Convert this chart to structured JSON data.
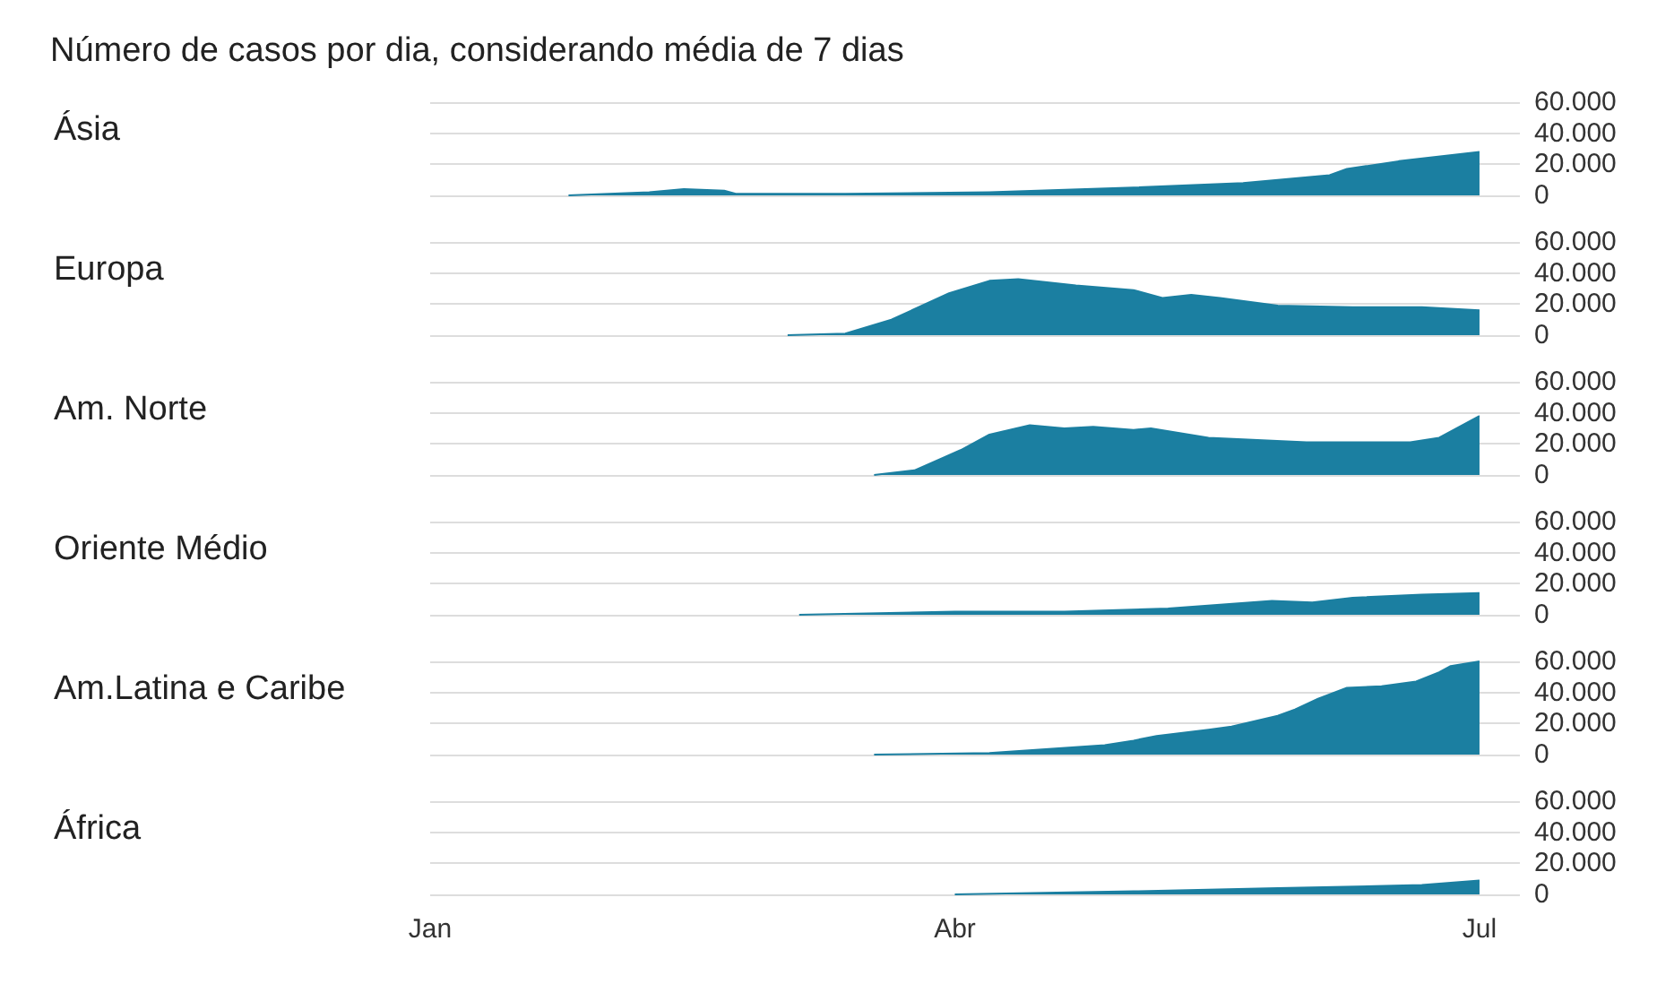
{
  "chart_data": [
    {
      "type": "area",
      "title": "Número de casos por dia, considerando média de 7 dias",
      "ylabel": "Ásia",
      "tick_labels": "y",
      "grid": "y",
      "x": [
        "--01-25",
        "--02-08",
        "--02-14",
        "--02-21",
        "--02-23",
        "--03-13",
        "--04-07",
        "--05-02",
        "--05-21",
        "--06-05",
        "--06-08",
        "--06-17",
        "--07-01"
      ],
      "series": [
        {
          "color": "#1b7fa1",
          "values": [
            0,
            2000,
            4000,
            3000,
            1000,
            1000,
            2000,
            5000,
            8000,
            13000,
            17000,
            22000,
            28000
          ]
        }
      ],
      "xlim": [
        "--01-01",
        "--07-08"
      ],
      "ylim": [
        0,
        60000
      ],
      "yticks": [
        {
          "value": 0,
          "label": "0"
        },
        {
          "value": 20000,
          "label": "20.000"
        },
        {
          "value": 40000,
          "label": "40.000"
        },
        {
          "value": 60000,
          "label": "60.000"
        }
      ]
    },
    {
      "type": "area",
      "ylabel": "Europa",
      "tick_labels": "y",
      "grid": "y",
      "x": [
        "--03-03",
        "--03-13",
        "--03-21",
        "--03-31",
        "--04-07",
        "--04-12",
        "--04-22",
        "--05-02",
        "--05-07",
        "--05-12",
        "--05-17",
        "--05-27",
        "--06-09",
        "--06-21",
        "--07-01"
      ],
      "series": [
        {
          "color": "#1b7fa1",
          "values": [
            0,
            1000,
            10000,
            27000,
            35000,
            36000,
            32000,
            29000,
            24000,
            26000,
            24000,
            19000,
            18000,
            18000,
            16000
          ]
        }
      ],
      "xlim": [
        "--01-01",
        "--07-08"
      ],
      "ylim": [
        0,
        60000
      ],
      "yticks": [
        {
          "value": 0,
          "label": "0"
        },
        {
          "value": 20000,
          "label": "20.000"
        },
        {
          "value": 40000,
          "label": "40.000"
        },
        {
          "value": 60000,
          "label": "60.000"
        }
      ]
    },
    {
      "type": "area",
      "ylabel": "Am. Norte",
      "tick_labels": "y",
      "grid": "y",
      "x": [
        "--03-18",
        "--03-25",
        "--04-02",
        "--04-07",
        "--04-14",
        "--04-20",
        "--04-25",
        "--05-02",
        "--05-05",
        "--05-15",
        "--06-01",
        "--06-19",
        "--06-24",
        "--07-01"
      ],
      "series": [
        {
          "color": "#1b7fa1",
          "values": [
            0,
            3000,
            16000,
            26000,
            32000,
            30000,
            31000,
            29000,
            30000,
            24000,
            21000,
            21000,
            24000,
            38000
          ]
        }
      ],
      "xlim": [
        "--01-01",
        "--07-08"
      ],
      "ylim": [
        0,
        60000
      ],
      "yticks": [
        {
          "value": 0,
          "label": "0"
        },
        {
          "value": 20000,
          "label": "20.000"
        },
        {
          "value": 40000,
          "label": "40.000"
        },
        {
          "value": 60000,
          "label": "60.000"
        }
      ]
    },
    {
      "type": "area",
      "ylabel": "Oriente Médio",
      "tick_labels": "y",
      "grid": "y",
      "x": [
        "--03-05",
        "--04-01",
        "--04-07",
        "--04-20",
        "--05-08",
        "--05-26",
        "--06-02",
        "--06-09",
        "--06-21",
        "--07-01"
      ],
      "series": [
        {
          "color": "#1b7fa1",
          "values": [
            0,
            2000,
            2000,
            2000,
            4000,
            9000,
            8000,
            11000,
            13000,
            14000
          ]
        }
      ],
      "xlim": [
        "--01-01",
        "--07-08"
      ],
      "ylim": [
        0,
        60000
      ],
      "yticks": [
        {
          "value": 0,
          "label": "0"
        },
        {
          "value": 20000,
          "label": "20.000"
        },
        {
          "value": 40000,
          "label": "40.000"
        },
        {
          "value": 60000,
          "label": "60.000"
        }
      ]
    },
    {
      "type": "area",
      "ylabel": "Am.Latina e Caribe",
      "tick_labels": "y",
      "grid": "y",
      "x": [
        "--03-18",
        "--04-07",
        "--04-27",
        "--05-02",
        "--05-06",
        "--05-15",
        "--05-19",
        "--05-27",
        "--05-30",
        "--06-03",
        "--06-08",
        "--06-14",
        "--06-20",
        "--06-24",
        "--06-26",
        "--07-01"
      ],
      "series": [
        {
          "color": "#1b7fa1",
          "values": [
            0,
            1000,
            6000,
            9000,
            12000,
            16000,
            18000,
            25000,
            29000,
            36000,
            43000,
            44000,
            47000,
            53000,
            57000,
            60000
          ]
        }
      ],
      "xlim": [
        "--01-01",
        "--07-08"
      ],
      "ylim": [
        0,
        60000
      ],
      "yticks": [
        {
          "value": 0,
          "label": "0"
        },
        {
          "value": 20000,
          "label": "20.000"
        },
        {
          "value": 40000,
          "label": "40.000"
        },
        {
          "value": 60000,
          "label": "60.000"
        }
      ]
    },
    {
      "type": "area",
      "ylabel": "África",
      "grid": "y",
      "x": [
        "--04-01",
        "--05-02",
        "--05-27",
        "--06-21",
        "--07-01"
      ],
      "series": [
        {
          "color": "#1b7fa1",
          "values": [
            0,
            2000,
            4000,
            6000,
            9000
          ]
        }
      ],
      "xlim": [
        "--01-01",
        "--07-08"
      ],
      "ylim": [
        0,
        60000
      ],
      "xticks": [
        {
          "value": "--01-01",
          "label": "Jan"
        },
        {
          "value": "--04-01",
          "label": "Abr"
        },
        {
          "value": "--07-01",
          "label": "Jul"
        }
      ],
      "yticks": [
        {
          "value": 0,
          "label": "0"
        },
        {
          "value": 20000,
          "label": "20.000"
        },
        {
          "value": 40000,
          "label": "40.000"
        },
        {
          "value": 60000,
          "label": "60.000"
        }
      ]
    }
  ]
}
